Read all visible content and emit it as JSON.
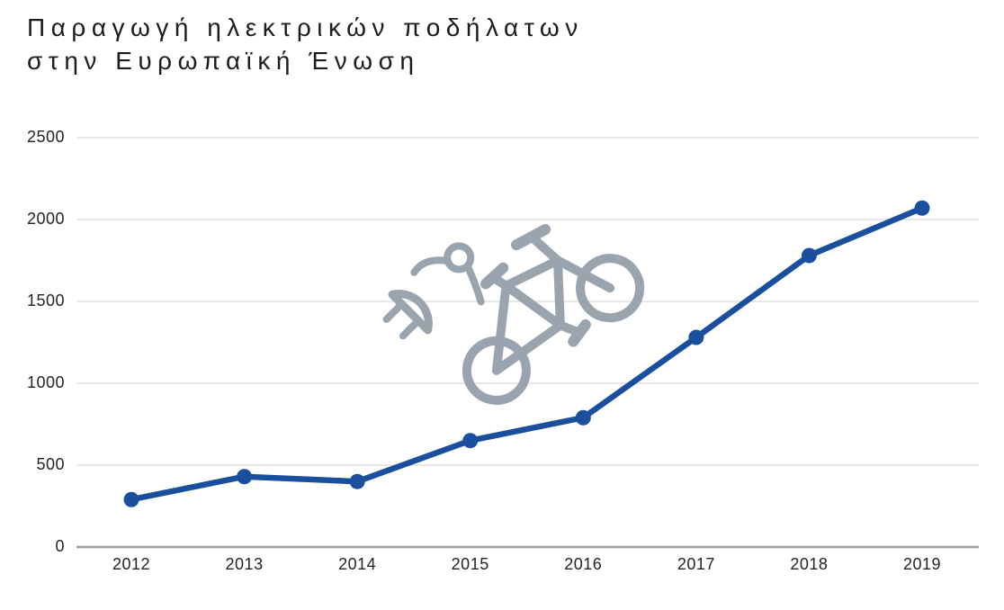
{
  "page": {
    "background": "#ffffff"
  },
  "title": {
    "line1": "Παραγωγή ηλεκτρικών ποδήλατων",
    "line2": "στην Ευρωπαϊκή Ένωση"
  },
  "colors": {
    "line": "#1a4f9e",
    "marker": "#1a4f9e",
    "grid": "#d9d9d9",
    "axis_baseline": "#9c9c9c",
    "text": "#242424",
    "title_text": "#1c1c1c",
    "icon_gray": "#9aa4ae"
  },
  "watermark_icon": "electric-bike-plug-icon",
  "chart_data": {
    "type": "line",
    "title": "Παραγωγή ηλεκτρικών ποδήλατων στην Ευρωπαϊκή Ένωση",
    "categories": [
      "2012",
      "2013",
      "2014",
      "2015",
      "2016",
      "2017",
      "2018",
      "2019"
    ],
    "values": [
      290,
      430,
      400,
      650,
      790,
      1280,
      1780,
      2070
    ],
    "xlabel": "",
    "ylabel": "",
    "ylim": [
      0,
      2500
    ],
    "y_ticks": [
      0,
      500,
      1000,
      1500,
      2000,
      2500
    ],
    "grid": true,
    "legend": "none",
    "line_color": "#1a4f9e",
    "marker_style": "filled-circle"
  }
}
